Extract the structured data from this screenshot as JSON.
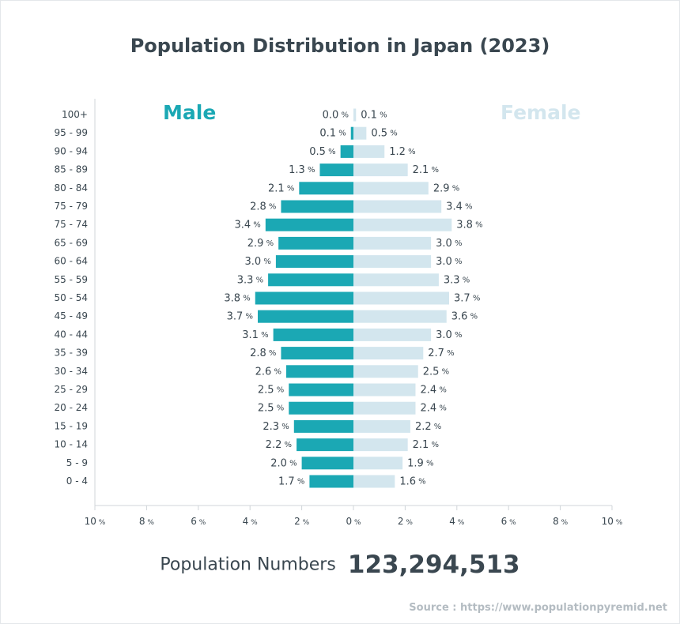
{
  "title": "Population Distribution in Japan (2023)",
  "legend": {
    "male": "Male",
    "female": "Female"
  },
  "population": {
    "label": "Population Numbers",
    "value": "123,294,513"
  },
  "source": "Source : https://www.populationpyremid.net",
  "colors": {
    "male": "#1ba8b4",
    "female": "#d3e6ee",
    "text": "#3a4750",
    "axis": "#d0d5d9"
  },
  "chart_data": {
    "type": "bar",
    "orientation": "horizontal-pyramid",
    "categories": [
      "100+",
      "95 - 99",
      "90 - 94",
      "85 - 89",
      "80 - 84",
      "75 - 79",
      "75 - 74",
      "65 - 69",
      "60 - 64",
      "55 - 59",
      "50 - 54",
      "45 - 49",
      "40 - 44",
      "35 - 39",
      "30 - 34",
      "25 - 29",
      "20 - 24",
      "15 - 19",
      "10 - 14",
      "5 - 9",
      "0 - 4"
    ],
    "series": [
      {
        "name": "Male",
        "values": [
          0.0,
          0.1,
          0.5,
          1.3,
          2.1,
          2.8,
          3.4,
          2.9,
          3.0,
          3.3,
          3.8,
          3.7,
          3.1,
          2.8,
          2.6,
          2.5,
          2.5,
          2.3,
          2.2,
          2.0,
          1.7
        ]
      },
      {
        "name": "Female",
        "values": [
          0.1,
          0.5,
          1.2,
          2.1,
          2.9,
          3.4,
          3.8,
          3.0,
          3.0,
          3.3,
          3.7,
          3.6,
          3.0,
          2.7,
          2.5,
          2.4,
          2.4,
          2.2,
          2.1,
          1.9,
          1.6
        ]
      }
    ],
    "unit": "%",
    "xlim": [
      -10,
      10
    ],
    "x_ticks": [
      "10",
      "8",
      "6",
      "4",
      "2",
      "0",
      "2",
      "4",
      "6",
      "8",
      "10"
    ],
    "grid": false
  }
}
